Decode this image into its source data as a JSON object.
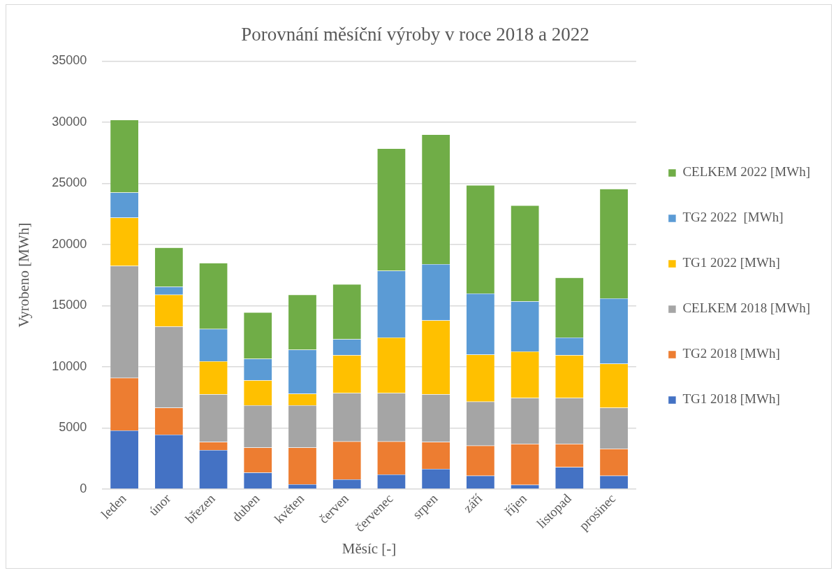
{
  "chart_data": {
    "type": "bar",
    "stacked": true,
    "title": "Porovnání měsíční výroby v roce 2018 a 2022",
    "xlabel": "Měsíc [-]",
    "ylabel": "Vyrobeno [MWh]",
    "categories": [
      "leden",
      "únor",
      "březen",
      "duben",
      "květen",
      "červen",
      "červenec",
      "srpen",
      "září",
      "říjen",
      "listopad",
      "prosinec"
    ],
    "series": [
      {
        "name": "TG1 2018 [MWh]",
        "color": "#4472c4",
        "values": [
          4800,
          4450,
          3200,
          1350,
          400,
          800,
          1200,
          1650,
          1100,
          350,
          1800,
          1100
        ]
      },
      {
        "name": "TG2 2018 [MWh]",
        "color": "#ed7d31",
        "values": [
          4300,
          2200,
          650,
          2050,
          3000,
          3100,
          2700,
          2200,
          2450,
          3350,
          1900,
          2200
        ]
      },
      {
        "name": "CELKEM 2018 [MWh]",
        "color": "#a5a5a5",
        "values": [
          9150,
          6650,
          3900,
          3450,
          3450,
          3950,
          3950,
          3900,
          3600,
          3750,
          3750,
          3350
        ]
      },
      {
        "name": "TG1 2022 [MWh]",
        "color": "#ffc000",
        "values": [
          3950,
          2600,
          2700,
          2050,
          950,
          3100,
          4550,
          6050,
          3850,
          3800,
          3500,
          3600
        ]
      },
      {
        "name": "TG2 2022  [MWh]",
        "color": "#5b9bd5",
        "values": [
          2050,
          650,
          2650,
          1750,
          3600,
          1300,
          5450,
          4600,
          5000,
          4100,
          1450,
          5350
        ]
      },
      {
        "name": "CELKEM 2022 [MWh]",
        "color": "#70ad47",
        "values": [
          5950,
          3200,
          5400,
          3800,
          4500,
          4500,
          10000,
          10600,
          8850,
          7850,
          4900,
          8950
        ]
      }
    ],
    "ylim": [
      0,
      35000
    ],
    "yticks": [
      0,
      5000,
      10000,
      15000,
      20000,
      25000,
      30000,
      35000
    ],
    "grid": "y",
    "legend": "right"
  }
}
